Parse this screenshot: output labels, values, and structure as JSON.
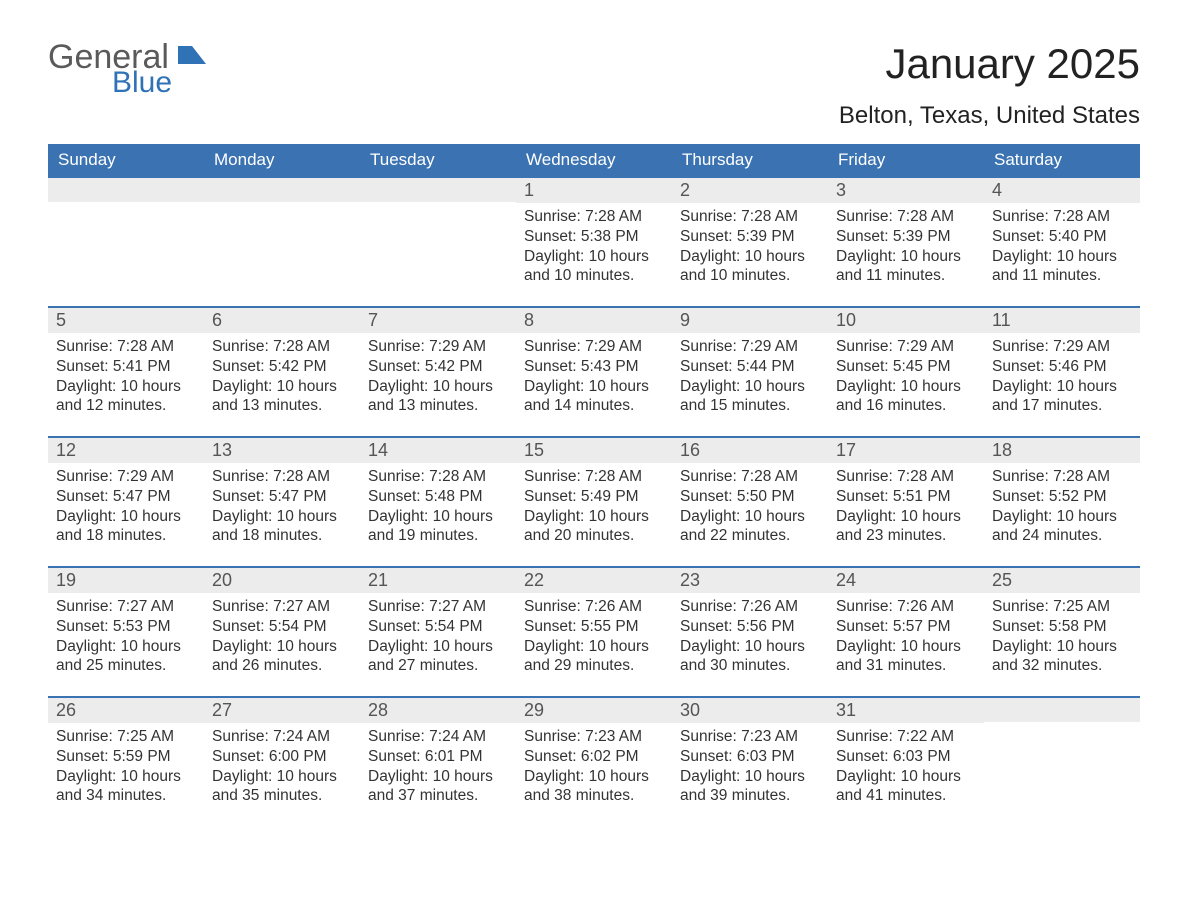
{
  "logo": {
    "general": "General",
    "blue": "Blue"
  },
  "title": "January 2025",
  "location": "Belton, Texas, United States",
  "colors": {
    "header_bg": "#3a72b2",
    "header_text": "#ffffff",
    "daynum_bg": "#ececec",
    "daynum_text": "#555555",
    "body_text": "#333333",
    "border": "#3a72b2",
    "logo_gray": "#5a5a5a",
    "logo_blue": "#2f72b6"
  },
  "fonts": {
    "title_size_pt": 32,
    "location_size_pt": 18,
    "dayname_size_pt": 13,
    "daynum_size_pt": 14,
    "body_size_pt": 12
  },
  "daynames": [
    "Sunday",
    "Monday",
    "Tuesday",
    "Wednesday",
    "Thursday",
    "Friday",
    "Saturday"
  ],
  "weeks": [
    [
      {
        "day": "",
        "sunrise": "",
        "sunset": "",
        "daylight1": "",
        "daylight2": ""
      },
      {
        "day": "",
        "sunrise": "",
        "sunset": "",
        "daylight1": "",
        "daylight2": ""
      },
      {
        "day": "",
        "sunrise": "",
        "sunset": "",
        "daylight1": "",
        "daylight2": ""
      },
      {
        "day": "1",
        "sunrise": "Sunrise: 7:28 AM",
        "sunset": "Sunset: 5:38 PM",
        "daylight1": "Daylight: 10 hours",
        "daylight2": "and 10 minutes."
      },
      {
        "day": "2",
        "sunrise": "Sunrise: 7:28 AM",
        "sunset": "Sunset: 5:39 PM",
        "daylight1": "Daylight: 10 hours",
        "daylight2": "and 10 minutes."
      },
      {
        "day": "3",
        "sunrise": "Sunrise: 7:28 AM",
        "sunset": "Sunset: 5:39 PM",
        "daylight1": "Daylight: 10 hours",
        "daylight2": "and 11 minutes."
      },
      {
        "day": "4",
        "sunrise": "Sunrise: 7:28 AM",
        "sunset": "Sunset: 5:40 PM",
        "daylight1": "Daylight: 10 hours",
        "daylight2": "and 11 minutes."
      }
    ],
    [
      {
        "day": "5",
        "sunrise": "Sunrise: 7:28 AM",
        "sunset": "Sunset: 5:41 PM",
        "daylight1": "Daylight: 10 hours",
        "daylight2": "and 12 minutes."
      },
      {
        "day": "6",
        "sunrise": "Sunrise: 7:28 AM",
        "sunset": "Sunset: 5:42 PM",
        "daylight1": "Daylight: 10 hours",
        "daylight2": "and 13 minutes."
      },
      {
        "day": "7",
        "sunrise": "Sunrise: 7:29 AM",
        "sunset": "Sunset: 5:42 PM",
        "daylight1": "Daylight: 10 hours",
        "daylight2": "and 13 minutes."
      },
      {
        "day": "8",
        "sunrise": "Sunrise: 7:29 AM",
        "sunset": "Sunset: 5:43 PM",
        "daylight1": "Daylight: 10 hours",
        "daylight2": "and 14 minutes."
      },
      {
        "day": "9",
        "sunrise": "Sunrise: 7:29 AM",
        "sunset": "Sunset: 5:44 PM",
        "daylight1": "Daylight: 10 hours",
        "daylight2": "and 15 minutes."
      },
      {
        "day": "10",
        "sunrise": "Sunrise: 7:29 AM",
        "sunset": "Sunset: 5:45 PM",
        "daylight1": "Daylight: 10 hours",
        "daylight2": "and 16 minutes."
      },
      {
        "day": "11",
        "sunrise": "Sunrise: 7:29 AM",
        "sunset": "Sunset: 5:46 PM",
        "daylight1": "Daylight: 10 hours",
        "daylight2": "and 17 minutes."
      }
    ],
    [
      {
        "day": "12",
        "sunrise": "Sunrise: 7:29 AM",
        "sunset": "Sunset: 5:47 PM",
        "daylight1": "Daylight: 10 hours",
        "daylight2": "and 18 minutes."
      },
      {
        "day": "13",
        "sunrise": "Sunrise: 7:28 AM",
        "sunset": "Sunset: 5:47 PM",
        "daylight1": "Daylight: 10 hours",
        "daylight2": "and 18 minutes."
      },
      {
        "day": "14",
        "sunrise": "Sunrise: 7:28 AM",
        "sunset": "Sunset: 5:48 PM",
        "daylight1": "Daylight: 10 hours",
        "daylight2": "and 19 minutes."
      },
      {
        "day": "15",
        "sunrise": "Sunrise: 7:28 AM",
        "sunset": "Sunset: 5:49 PM",
        "daylight1": "Daylight: 10 hours",
        "daylight2": "and 20 minutes."
      },
      {
        "day": "16",
        "sunrise": "Sunrise: 7:28 AM",
        "sunset": "Sunset: 5:50 PM",
        "daylight1": "Daylight: 10 hours",
        "daylight2": "and 22 minutes."
      },
      {
        "day": "17",
        "sunrise": "Sunrise: 7:28 AM",
        "sunset": "Sunset: 5:51 PM",
        "daylight1": "Daylight: 10 hours",
        "daylight2": "and 23 minutes."
      },
      {
        "day": "18",
        "sunrise": "Sunrise: 7:28 AM",
        "sunset": "Sunset: 5:52 PM",
        "daylight1": "Daylight: 10 hours",
        "daylight2": "and 24 minutes."
      }
    ],
    [
      {
        "day": "19",
        "sunrise": "Sunrise: 7:27 AM",
        "sunset": "Sunset: 5:53 PM",
        "daylight1": "Daylight: 10 hours",
        "daylight2": "and 25 minutes."
      },
      {
        "day": "20",
        "sunrise": "Sunrise: 7:27 AM",
        "sunset": "Sunset: 5:54 PM",
        "daylight1": "Daylight: 10 hours",
        "daylight2": "and 26 minutes."
      },
      {
        "day": "21",
        "sunrise": "Sunrise: 7:27 AM",
        "sunset": "Sunset: 5:54 PM",
        "daylight1": "Daylight: 10 hours",
        "daylight2": "and 27 minutes."
      },
      {
        "day": "22",
        "sunrise": "Sunrise: 7:26 AM",
        "sunset": "Sunset: 5:55 PM",
        "daylight1": "Daylight: 10 hours",
        "daylight2": "and 29 minutes."
      },
      {
        "day": "23",
        "sunrise": "Sunrise: 7:26 AM",
        "sunset": "Sunset: 5:56 PM",
        "daylight1": "Daylight: 10 hours",
        "daylight2": "and 30 minutes."
      },
      {
        "day": "24",
        "sunrise": "Sunrise: 7:26 AM",
        "sunset": "Sunset: 5:57 PM",
        "daylight1": "Daylight: 10 hours",
        "daylight2": "and 31 minutes."
      },
      {
        "day": "25",
        "sunrise": "Sunrise: 7:25 AM",
        "sunset": "Sunset: 5:58 PM",
        "daylight1": "Daylight: 10 hours",
        "daylight2": "and 32 minutes."
      }
    ],
    [
      {
        "day": "26",
        "sunrise": "Sunrise: 7:25 AM",
        "sunset": "Sunset: 5:59 PM",
        "daylight1": "Daylight: 10 hours",
        "daylight2": "and 34 minutes."
      },
      {
        "day": "27",
        "sunrise": "Sunrise: 7:24 AM",
        "sunset": "Sunset: 6:00 PM",
        "daylight1": "Daylight: 10 hours",
        "daylight2": "and 35 minutes."
      },
      {
        "day": "28",
        "sunrise": "Sunrise: 7:24 AM",
        "sunset": "Sunset: 6:01 PM",
        "daylight1": "Daylight: 10 hours",
        "daylight2": "and 37 minutes."
      },
      {
        "day": "29",
        "sunrise": "Sunrise: 7:23 AM",
        "sunset": "Sunset: 6:02 PM",
        "daylight1": "Daylight: 10 hours",
        "daylight2": "and 38 minutes."
      },
      {
        "day": "30",
        "sunrise": "Sunrise: 7:23 AM",
        "sunset": "Sunset: 6:03 PM",
        "daylight1": "Daylight: 10 hours",
        "daylight2": "and 39 minutes."
      },
      {
        "day": "31",
        "sunrise": "Sunrise: 7:22 AM",
        "sunset": "Sunset: 6:03 PM",
        "daylight1": "Daylight: 10 hours",
        "daylight2": "and 41 minutes."
      },
      {
        "day": "",
        "sunrise": "",
        "sunset": "",
        "daylight1": "",
        "daylight2": ""
      }
    ]
  ]
}
